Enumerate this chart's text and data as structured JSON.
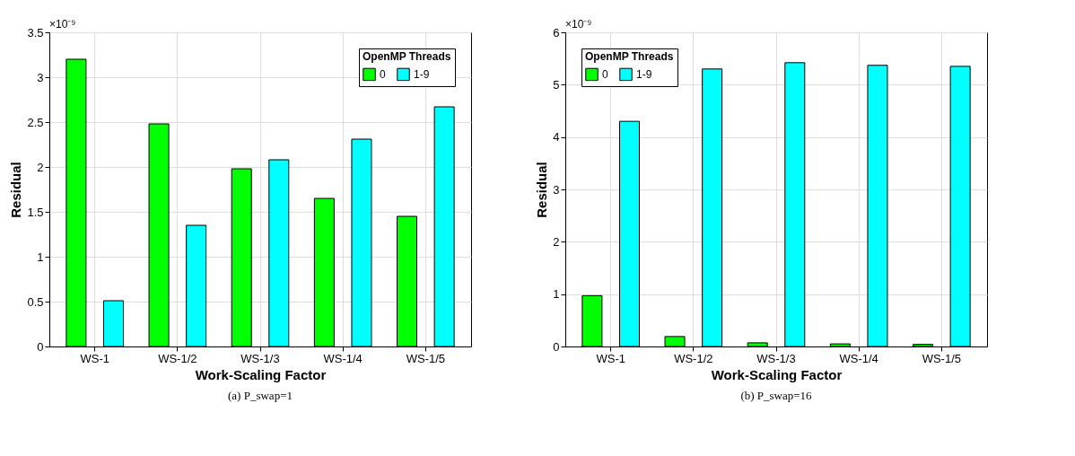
{
  "chart_data": [
    {
      "type": "bar",
      "categories": [
        "WS-1",
        "WS-1/2",
        "WS-1/3",
        "WS-1/4",
        "WS-1/5"
      ],
      "xlabel": "Work-Scaling Factor",
      "ylabel": "Residual",
      "legend_title": "OpenMP Threads",
      "legend": "top right",
      "grid": true,
      "ylim": [
        0,
        3.5
      ],
      "yticks": [
        0,
        0.5,
        1,
        1.5,
        2,
        2.5,
        3,
        3.5
      ],
      "series": [
        {
          "name": "0",
          "color": "#00ff00",
          "values": [
            3.2,
            2.48,
            1.98,
            1.65,
            1.45
          ]
        },
        {
          "name": "1-9",
          "color": "#00ffff",
          "values": [
            0.51,
            1.35,
            2.08,
            2.31,
            2.67
          ]
        }
      ],
      "annotations": [
        "×10⁻⁹",
        "(a) P_swap=1"
      ]
    },
    {
      "type": "bar",
      "categories": [
        "WS-1",
        "WS-1/2",
        "WS-1/3",
        "WS-1/4",
        "WS-1/5"
      ],
      "xlabel": "Work-Scaling Factor",
      "ylabel": "Residual",
      "legend_title": "OpenMP Threads",
      "legend": "top left",
      "grid": true,
      "ylim": [
        0,
        6
      ],
      "yticks": [
        0,
        1,
        2,
        3,
        4,
        5,
        6
      ],
      "series": [
        {
          "name": "0",
          "color": "#00ff00",
          "values": [
            0.97,
            0.19,
            0.07,
            0.05,
            0.04
          ]
        },
        {
          "name": "1-9",
          "color": "#00ffff",
          "values": [
            4.3,
            5.3,
            5.42,
            5.37,
            5.35
          ]
        }
      ],
      "annotations": [
        "×10⁻⁹",
        "(b) P_swap=16"
      ]
    }
  ]
}
